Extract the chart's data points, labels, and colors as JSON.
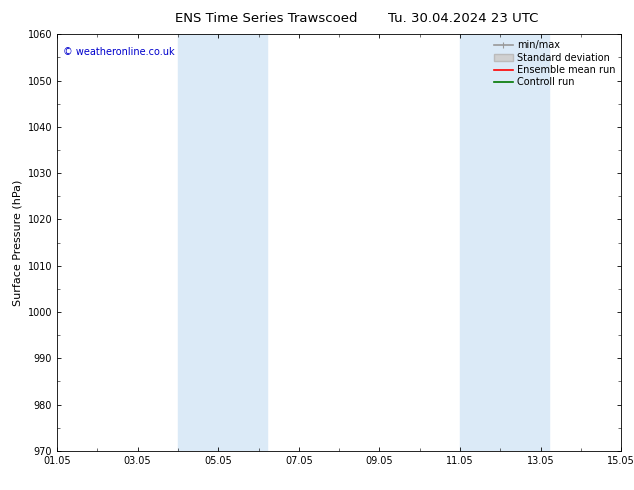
{
  "title_left": "ENS Time Series Trawscoed",
  "title_right": "Tu. 30.04.2024 23 UTC",
  "ylabel": "Surface Pressure (hPa)",
  "ylim": [
    970,
    1060
  ],
  "yticks": [
    970,
    980,
    990,
    1000,
    1010,
    1020,
    1030,
    1040,
    1050,
    1060
  ],
  "xlim_num": [
    0,
    14
  ],
  "xtick_positions": [
    0,
    2,
    4,
    6,
    8,
    10,
    12,
    14
  ],
  "xtick_labels": [
    "01.05",
    "03.05",
    "05.05",
    "07.05",
    "09.05",
    "11.05",
    "13.05",
    "15.05"
  ],
  "shaded_bands": [
    {
      "xmin": 3.0,
      "xmax": 4.0,
      "color": "#dbeaf7"
    },
    {
      "xmin": 4.0,
      "xmax": 5.2,
      "color": "#dbeaf7"
    },
    {
      "xmin": 10.0,
      "xmax": 11.0,
      "color": "#dbeaf7"
    },
    {
      "xmin": 11.0,
      "xmax": 12.2,
      "color": "#dbeaf7"
    }
  ],
  "copyright_text": "© weatheronline.co.uk",
  "copyright_color": "#0000cc",
  "legend_items": [
    {
      "label": "min/max",
      "color": "#999999",
      "lw": 1.2
    },
    {
      "label": "Standard deviation",
      "facecolor": "#d0d0d0",
      "edgecolor": "#bbbbbb"
    },
    {
      "label": "Ensemble mean run",
      "color": "#ff0000",
      "lw": 1.2
    },
    {
      "label": "Controll run",
      "color": "#007700",
      "lw": 1.2
    }
  ],
  "bg_color": "#ffffff",
  "axes_bg_color": "#ffffff",
  "tick_color": "#000000",
  "spine_color": "#000000",
  "title_fontsize": 9.5,
  "tick_fontsize": 7,
  "ylabel_fontsize": 8,
  "legend_fontsize": 7,
  "copyright_fontsize": 7
}
